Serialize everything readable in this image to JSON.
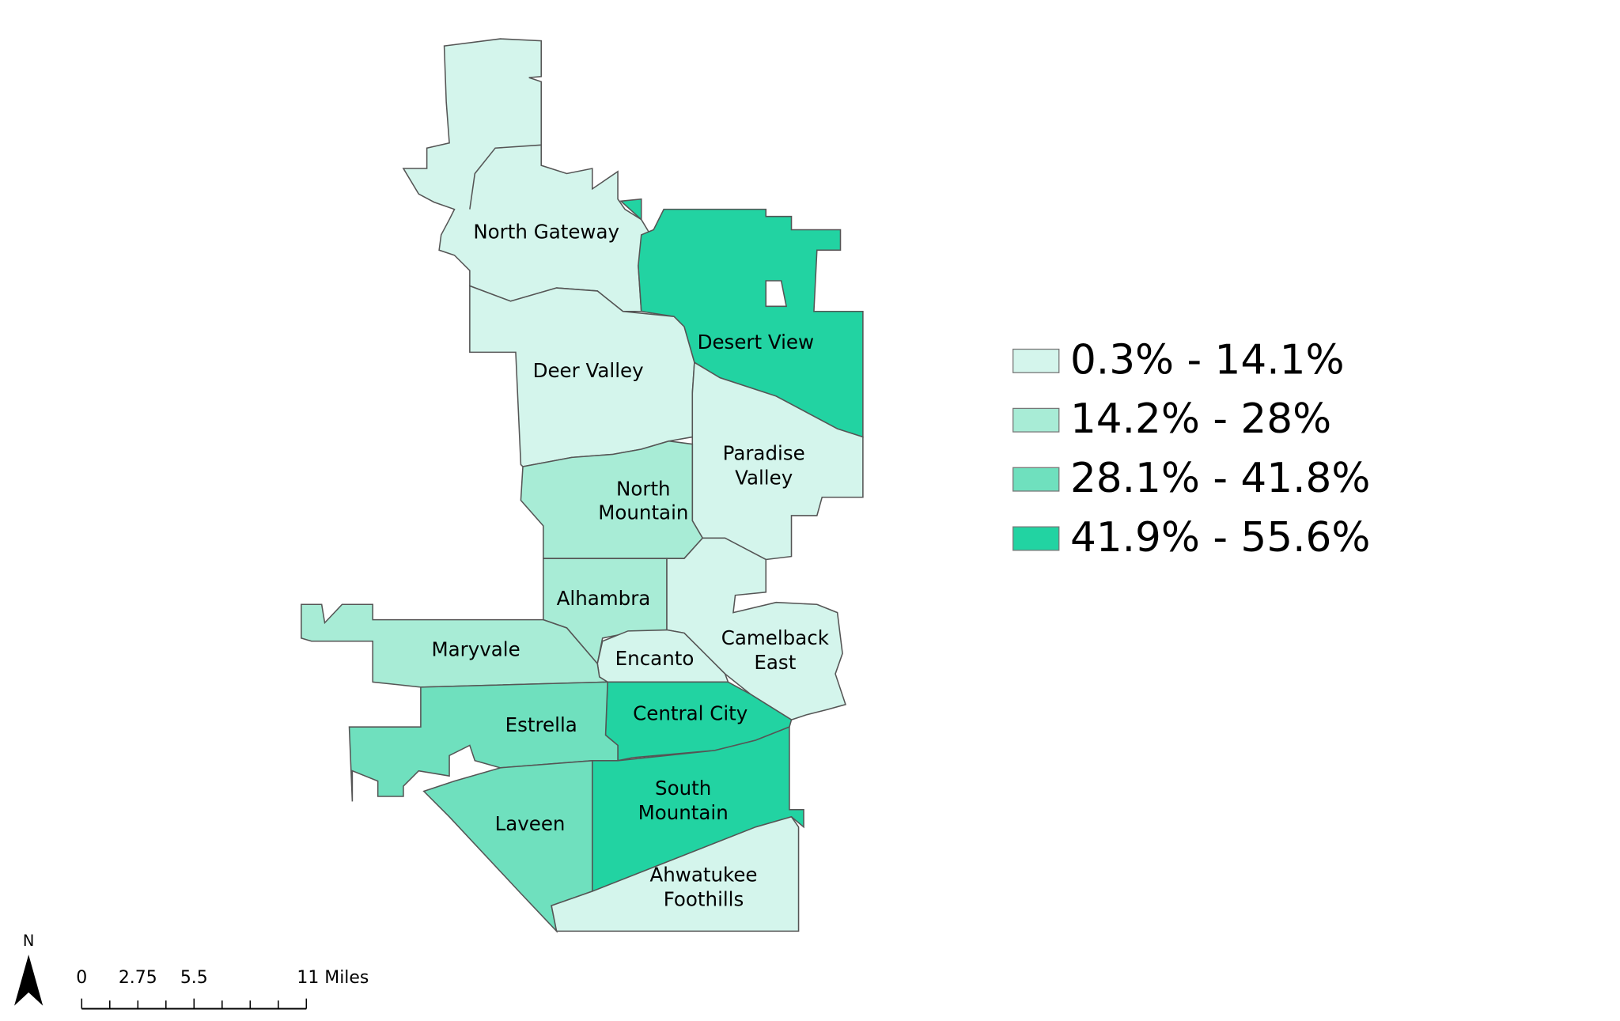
{
  "regions": [
    {
      "lines": [
        "North Gateway"
      ],
      "color": "#d4f5ec"
    },
    {
      "lines": [
        "Desert View"
      ],
      "color": "#22d3a2"
    },
    {
      "lines": [
        "Deer Valley"
      ],
      "color": "#d4f5ec"
    },
    {
      "lines": [
        "Paradise",
        "Valley"
      ],
      "color": "#d4f5ec"
    },
    {
      "lines": [
        "North",
        "Mountain"
      ],
      "color": "#a8ecd6"
    },
    {
      "lines": [
        "Alhambra"
      ],
      "color": "#a8ecd6"
    },
    {
      "lines": [
        "Camelback",
        "East"
      ],
      "color": "#d4f5ec"
    },
    {
      "lines": [
        "Encanto"
      ],
      "color": "#d4f5ec"
    },
    {
      "lines": [
        "Maryvale"
      ],
      "color": "#a8ecd6"
    },
    {
      "lines": [
        "Central City"
      ],
      "color": "#22d3a2"
    },
    {
      "lines": [
        "Estrella"
      ],
      "color": "#6fe0be"
    },
    {
      "lines": [
        "South",
        "Mountain"
      ],
      "color": "#22d3a2"
    },
    {
      "lines": [
        "Laveen"
      ],
      "color": "#6fe0be"
    },
    {
      "lines": [
        "Ahwatukee",
        "Foothills"
      ],
      "color": "#d4f5ec"
    }
  ],
  "legend": {
    "items": [
      {
        "label": "0.3% - 14.1%",
        "color": "#d4f5ec"
      },
      {
        "label": "14.2% - 28%",
        "color": "#a8ecd6"
      },
      {
        "label": "28.1% - 41.8%",
        "color": "#6fe0be"
      },
      {
        "label": "41.9% - 55.6%",
        "color": "#22d3a2"
      }
    ]
  },
  "north_arrow": {
    "label": "N"
  },
  "scale_bar": {
    "labels": [
      "0",
      "2.75",
      "5.5",
      "11 Miles"
    ]
  }
}
